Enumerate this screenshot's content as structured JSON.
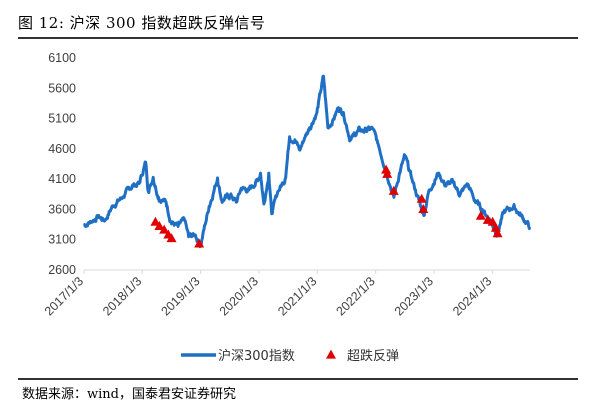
{
  "figure": {
    "title": "图 12:  沪深 300 指数超跌反弹信号",
    "source": "数据来源：wind，国泰君安证券研究"
  },
  "colors": {
    "line": "#1f6fc5",
    "marker": "#e00000",
    "axis": "#d9d9d9"
  },
  "chart_data": {
    "type": "line",
    "ylim": [
      2600,
      6100
    ],
    "yticks": [
      "6100",
      "5600",
      "5100",
      "4600",
      "4100",
      "3600",
      "3100",
      "2600"
    ],
    "xticks": [
      "2017/1/3",
      "2018/1/3",
      "2019/1/3",
      "2020/1/3",
      "2021/1/3",
      "2022/1/3",
      "2023/1/3",
      "2024/1/3"
    ],
    "legend": {
      "position": "bottom",
      "line_label": "沪深300指数",
      "marker_label": "超跌反弹"
    },
    "series": [
      {
        "name": "沪深300指数",
        "type": "line",
        "points": [
          [
            "2017/1/3",
            3340
          ],
          [
            "2017/2/15",
            3400
          ],
          [
            "2017/4/1",
            3480
          ],
          [
            "2017/5/15",
            3420
          ],
          [
            "2017/7/1",
            3660
          ],
          [
            "2017/9/1",
            3800
          ],
          [
            "2017/11/1",
            3990
          ],
          [
            "2017/12/15",
            4030
          ],
          [
            "2018/1/24",
            4380
          ],
          [
            "2018/2/9",
            3900
          ],
          [
            "2018/3/12",
            4130
          ],
          [
            "2018/4/15",
            3800
          ],
          [
            "2018/6/1",
            3720
          ],
          [
            "2018/7/1",
            3400
          ],
          [
            "2018/8/15",
            3320
          ],
          [
            "2018/9/25",
            3420
          ],
          [
            "2018/10/20",
            3150
          ],
          [
            "2018/12/1",
            3180
          ],
          [
            "2019/1/3",
            3010
          ],
          [
            "2019/2/25",
            3650
          ],
          [
            "2019/4/19",
            4120
          ],
          [
            "2019/5/15",
            3750
          ],
          [
            "2019/6/15",
            3800
          ],
          [
            "2019/7/15",
            3830
          ],
          [
            "2019/8/15",
            3720
          ],
          [
            "2019/9/15",
            3950
          ],
          [
            "2019/11/1",
            3920
          ],
          [
            "2019/12/31",
            4100
          ],
          [
            "2020/1/13",
            4200
          ],
          [
            "2020/2/3",
            3690
          ],
          [
            "2020/3/5",
            4200
          ],
          [
            "2020/3/23",
            3530
          ],
          [
            "2020/5/1",
            3900
          ],
          [
            "2020/6/15",
            4100
          ],
          [
            "2020/7/13",
            4800
          ],
          [
            "2020/8/15",
            4750
          ],
          [
            "2020/9/15",
            4580
          ],
          [
            "2020/10/15",
            4780
          ],
          [
            "2020/11/15",
            4950
          ],
          [
            "2020/12/31",
            5200
          ],
          [
            "2021/2/10",
            5800
          ],
          [
            "2021/3/10",
            4950
          ],
          [
            "2021/4/15",
            5100
          ],
          [
            "2021/5/15",
            5280
          ],
          [
            "2021/6/15",
            5200
          ],
          [
            "2021/7/28",
            4750
          ],
          [
            "2021/9/15",
            4900
          ],
          [
            "2021/10/15",
            4900
          ],
          [
            "2021/12/15",
            4930
          ],
          [
            "2022/1/15",
            4700
          ],
          [
            "2022/3/15",
            4200
          ],
          [
            "2022/4/27",
            3800
          ],
          [
            "2022/6/1",
            4200
          ],
          [
            "2022/7/5",
            4480
          ],
          [
            "2022/8/15",
            4120
          ],
          [
            "2022/10/31",
            3500
          ],
          [
            "2022/12/1",
            3900
          ],
          [
            "2023/1/30",
            4200
          ],
          [
            "2023/3/15",
            4000
          ],
          [
            "2023/5/1",
            4050
          ],
          [
            "2023/6/15",
            3850
          ],
          [
            "2023/8/1",
            4020
          ],
          [
            "2023/9/15",
            3750
          ],
          [
            "2023/11/1",
            3600
          ],
          [
            "2023/12/15",
            3450
          ],
          [
            "2024/2/2",
            3200
          ],
          [
            "2024/3/15",
            3550
          ],
          [
            "2024/5/15",
            3650
          ],
          [
            "2024/6/15",
            3550
          ],
          [
            "2024/7/15",
            3450
          ],
          [
            "2024/8/25",
            3310
          ]
        ]
      },
      {
        "name": "超跌反弹",
        "type": "scatter",
        "points": [
          [
            "2018/3/26",
            3390
          ],
          [
            "2018/4/20",
            3320
          ],
          [
            "2018/5/20",
            3260
          ],
          [
            "2018/6/15",
            3180
          ],
          [
            "2018/7/5",
            3120
          ],
          [
            "2018/12/25",
            3030
          ],
          [
            "2022/3/9",
            4250
          ],
          [
            "2022/3/16",
            4180
          ],
          [
            "2022/4/26",
            3900
          ],
          [
            "2022/10/18",
            3770
          ],
          [
            "2022/10/28",
            3600
          ],
          [
            "2023/10/23",
            3490
          ],
          [
            "2023/12/6",
            3420
          ],
          [
            "2024/1/5",
            3390
          ],
          [
            "2024/1/25",
            3290
          ],
          [
            "2024/2/5",
            3200
          ]
        ]
      }
    ]
  }
}
